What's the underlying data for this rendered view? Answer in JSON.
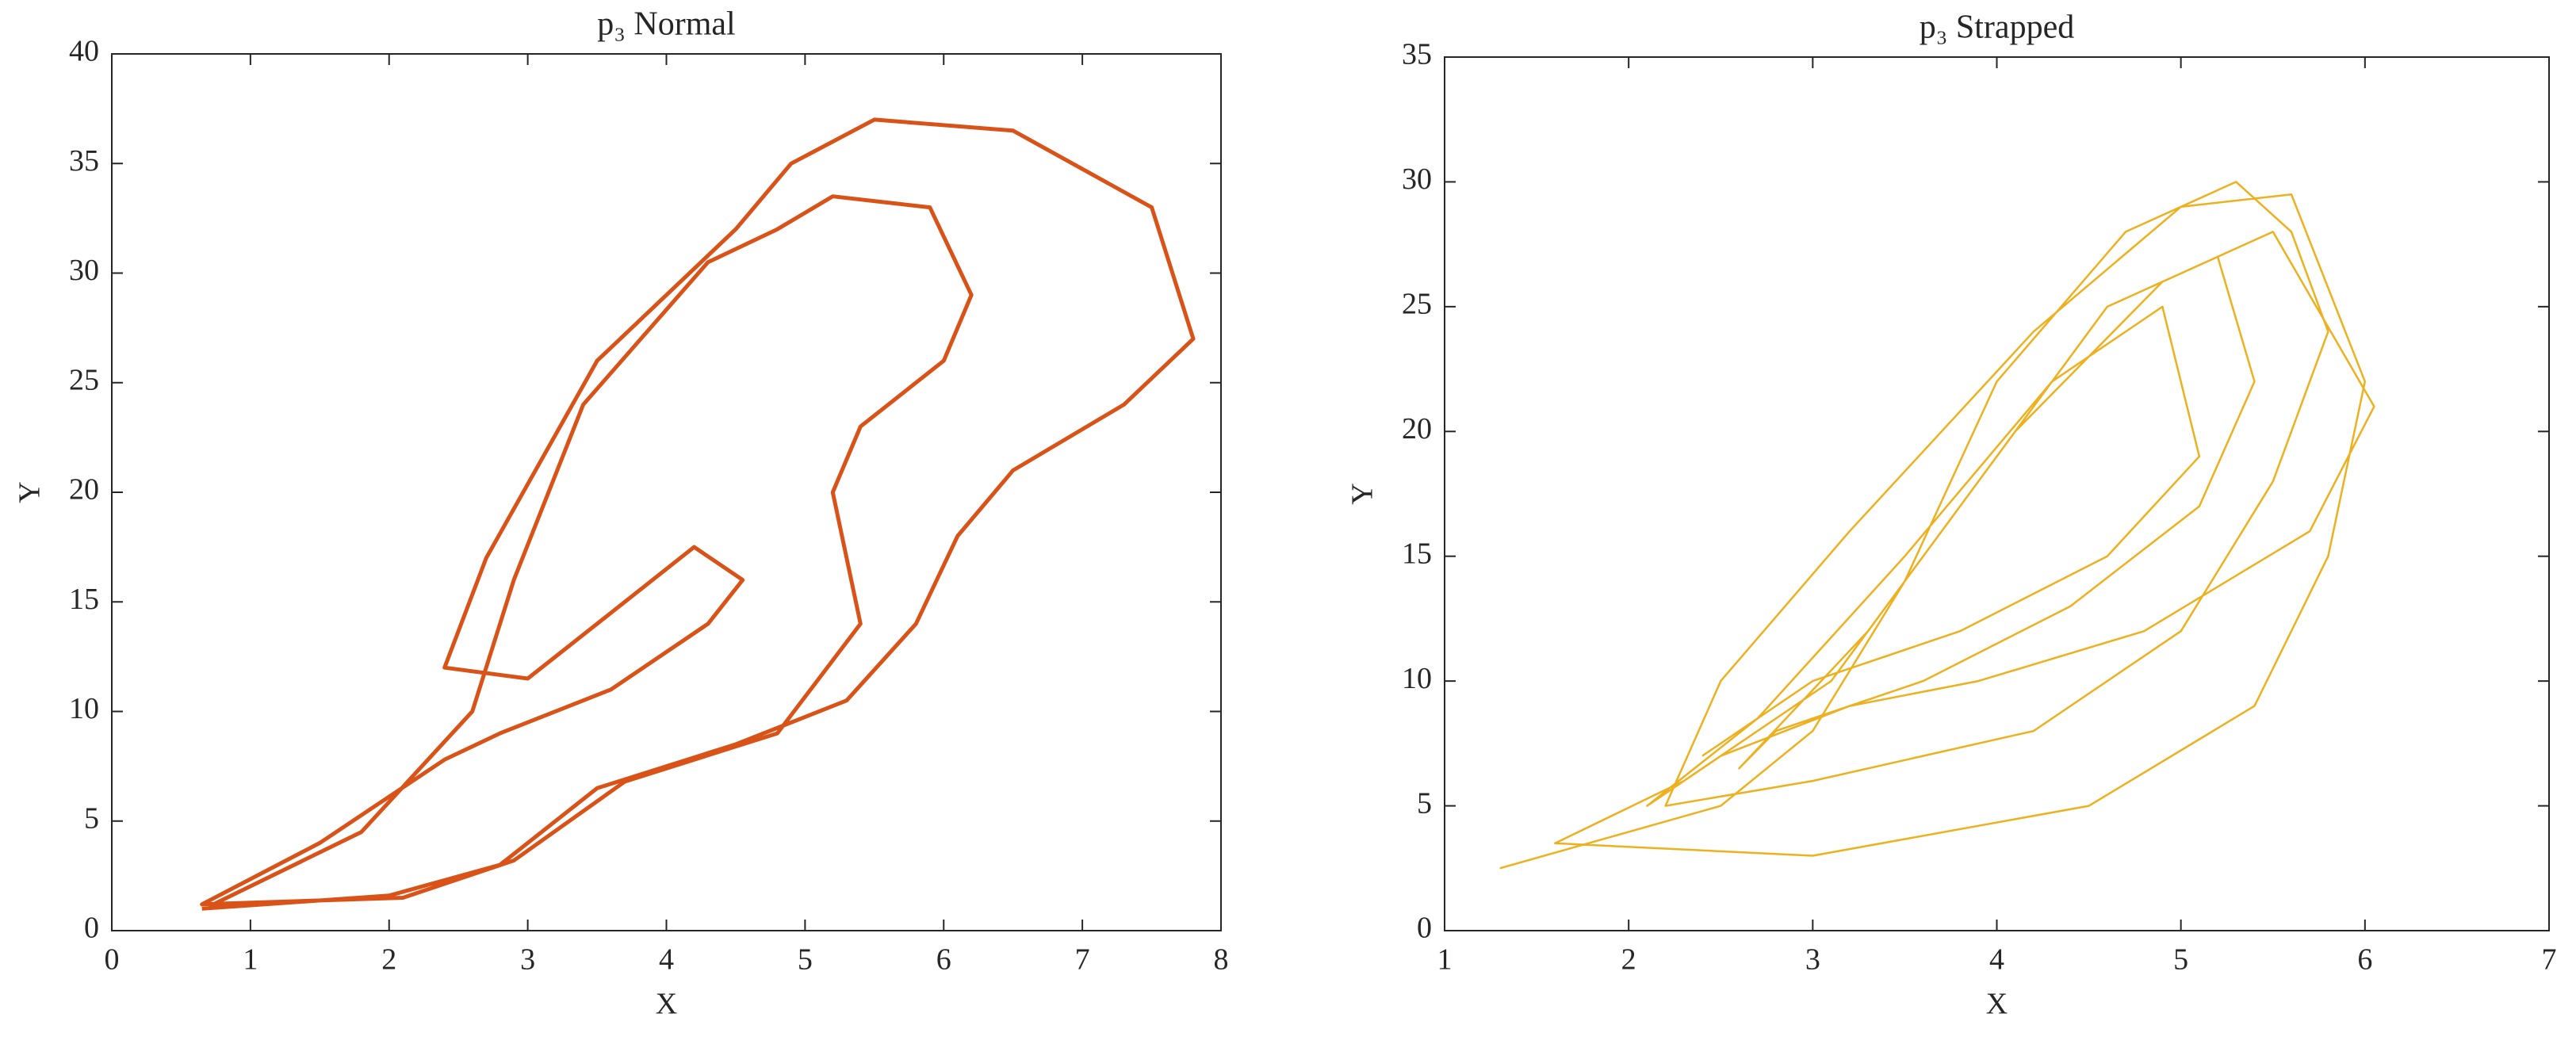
{
  "chart_data": [
    {
      "type": "line",
      "title": "p₃ Normal",
      "xlabel": "X",
      "ylabel": "Y",
      "color": "#D95319",
      "xlim": [
        0,
        8
      ],
      "ylim": [
        0,
        40
      ],
      "xticks": [
        0,
        1,
        2,
        3,
        4,
        5,
        6,
        7,
        8
      ],
      "yticks": [
        0,
        5,
        10,
        15,
        20,
        25,
        30,
        35,
        40
      ],
      "x": [
        0.65,
        2,
        2.8,
        3.5,
        4.5,
        5.3,
        5.8,
        6.1,
        6.5,
        7.3,
        7.8,
        7.5,
        6.5,
        5.5,
        4.9,
        4.5,
        3.5,
        2.7,
        2.4,
        3,
        3.2,
        3.6,
        4.2,
        4.55,
        4.3,
        3.6,
        2.8,
        2.4,
        1.5,
        0.65,
        2.1,
        2.9,
        3.7,
        4.8,
        5.4,
        5.2,
        5.4,
        6,
        6.2,
        5.9,
        5.2,
        4.8,
        4.3,
        3.4,
        2.9,
        2.6,
        1.8,
        0.7
      ],
      "values": [
        1,
        1.6,
        3,
        6.5,
        8.5,
        10.5,
        14,
        18,
        21,
        24,
        27,
        33,
        36.5,
        37,
        35,
        32,
        26,
        17,
        12,
        11.5,
        12.5,
        14.5,
        17.5,
        16,
        14,
        11,
        9,
        7.8,
        4,
        1.2,
        1.5,
        3.2,
        6.8,
        9,
        14,
        20,
        23,
        26,
        29,
        33,
        33.5,
        32,
        30.5,
        24,
        16,
        10,
        4.5,
        1.1
      ],
      "line_width": 5
    },
    {
      "type": "line",
      "title": "p₃ Strapped",
      "xlabel": "X",
      "ylabel": "Y",
      "color": "#EDB120",
      "xlim": [
        1,
        7
      ],
      "ylim": [
        0,
        35
      ],
      "xticks": [
        1,
        2,
        3,
        4,
        5,
        6,
        7
      ],
      "yticks": [
        0,
        5,
        10,
        15,
        20,
        25,
        30,
        35
      ],
      "x": [
        1.3,
        2.5,
        3,
        3.5,
        4,
        4.7,
        5.3,
        5.6,
        5.8,
        5.5,
        5,
        4.2,
        3,
        2.2,
        2.5,
        3.2,
        4.2,
        5,
        5.6,
        6,
        5.8,
        5.4,
        4.5,
        3,
        1.6,
        2.3,
        3.1,
        3.8,
        4.6,
        5.2,
        5.4,
        5.1,
        4.4,
        3.6,
        2.8,
        2.6,
        3.3,
        4.1,
        4.9,
        5.5,
        6.05,
        5.7,
        4.8,
        3.9,
        3.2,
        2.5,
        2.1,
        2.7,
        3.5,
        4.3,
        4.9,
        5.1,
        4.6,
        3.8,
        3.0,
        2.4
      ],
      "values": [
        2.5,
        5,
        8,
        14,
        22,
        28,
        30,
        28,
        24,
        18,
        12,
        8,
        6,
        5,
        10,
        16,
        24,
        29,
        29.5,
        22,
        15,
        9,
        5,
        3,
        3.5,
        6,
        10,
        17,
        25,
        27,
        22,
        17,
        13,
        10,
        8,
        6.5,
        12,
        20,
        26,
        28,
        21,
        16,
        12,
        10,
        9,
        7,
        5,
        8.5,
        15,
        22,
        25,
        19,
        15,
        12,
        10,
        7
      ],
      "line_width": 2.5
    }
  ]
}
